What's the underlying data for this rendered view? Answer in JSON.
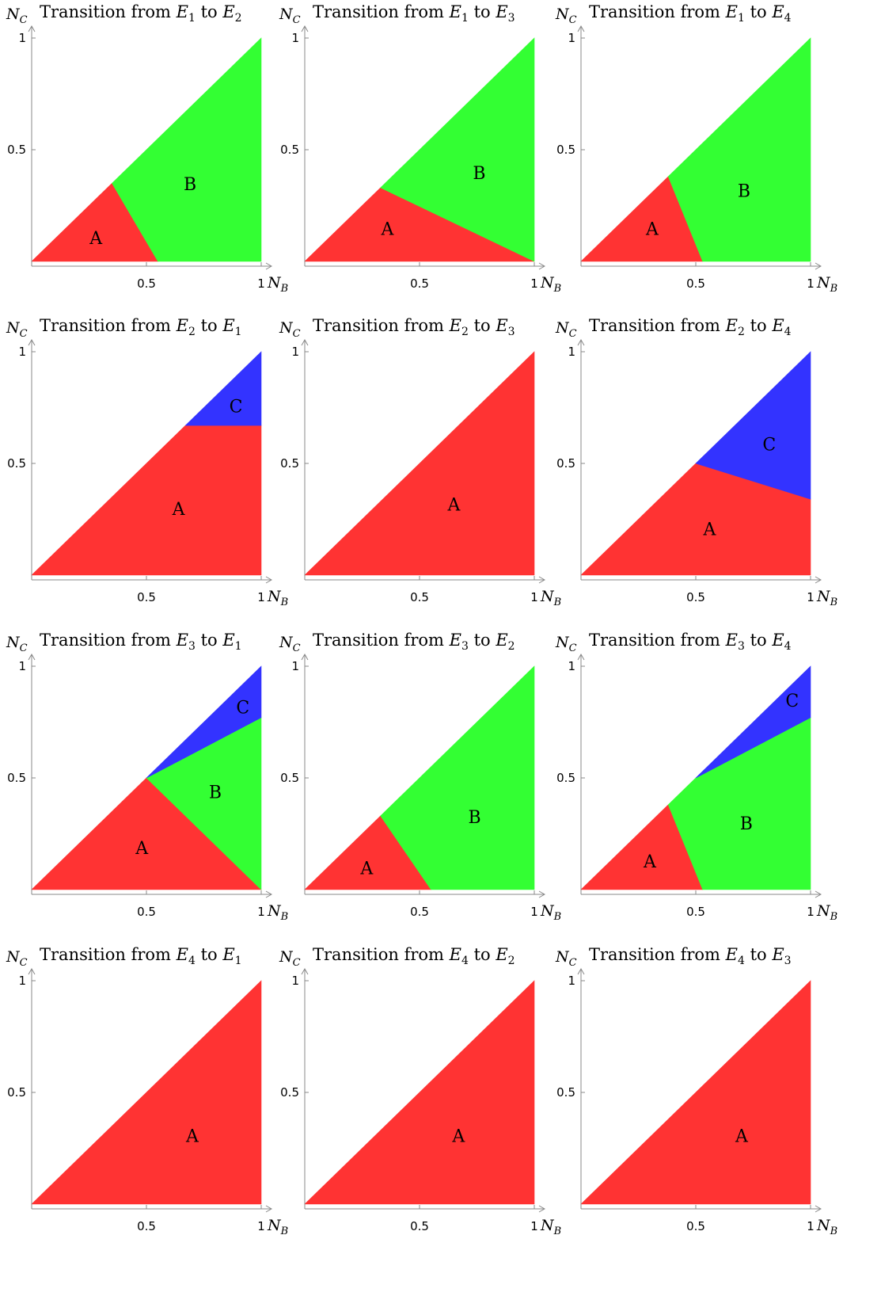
{
  "colors": {
    "A": "#ff3333",
    "B": "#33ff33",
    "C": "#3333ff",
    "axis": "#888888"
  },
  "chart_data": [
    {
      "type": "area",
      "title_prefix": "Transition from ",
      "from": "1",
      "to": "2",
      "xlabel": "N",
      "xlabel_sub": "B",
      "ylabel": "N",
      "ylabel_sub": "C",
      "x_ticks": [
        "0.5",
        "1"
      ],
      "y_ticks": [
        "0.5",
        "1"
      ],
      "xlim": [
        0,
        1
      ],
      "ylim": [
        0,
        1
      ],
      "regions": [
        {
          "label": "A",
          "points": [
            [
              0,
              0
            ],
            [
              0.35,
              0.35
            ],
            [
              0.55,
              0
            ]
          ],
          "label_at": [
            0.28,
            0.1
          ]
        },
        {
          "label": "B",
          "points": [
            [
              0.35,
              0.35
            ],
            [
              1,
              1
            ],
            [
              1,
              0
            ],
            [
              0.55,
              0
            ]
          ],
          "label_at": [
            0.69,
            0.34
          ]
        }
      ]
    },
    {
      "type": "area",
      "title_prefix": "Transition from ",
      "from": "1",
      "to": "3",
      "xlabel": "N",
      "xlabel_sub": "B",
      "ylabel": "N",
      "ylabel_sub": "C",
      "x_ticks": [
        "0.5",
        "1"
      ],
      "y_ticks": [
        "0.5",
        "1"
      ],
      "xlim": [
        0,
        1
      ],
      "ylim": [
        0,
        1
      ],
      "regions": [
        {
          "label": "A",
          "points": [
            [
              0,
              0
            ],
            [
              0.33,
              0.33
            ],
            [
              1,
              0
            ]
          ],
          "label_at": [
            0.36,
            0.14
          ]
        },
        {
          "label": "B",
          "points": [
            [
              0.33,
              0.33
            ],
            [
              1,
              1
            ],
            [
              1,
              0
            ]
          ],
          "label_at": [
            0.76,
            0.39
          ]
        }
      ]
    },
    {
      "type": "area",
      "title_prefix": "Transition from ",
      "from": "1",
      "to": "4",
      "xlabel": "N",
      "xlabel_sub": "B",
      "ylabel": "N",
      "ylabel_sub": "C",
      "x_ticks": [
        "0.5",
        "1"
      ],
      "y_ticks": [
        "0.5",
        "1"
      ],
      "xlim": [
        0,
        1
      ],
      "ylim": [
        0,
        1
      ],
      "regions": [
        {
          "label": "A",
          "points": [
            [
              0,
              0
            ],
            [
              0.38,
              0.38
            ],
            [
              0.53,
              0
            ]
          ],
          "label_at": [
            0.31,
            0.14
          ]
        },
        {
          "label": "B",
          "points": [
            [
              0.38,
              0.38
            ],
            [
              1,
              1
            ],
            [
              1,
              0
            ],
            [
              0.53,
              0
            ]
          ],
          "label_at": [
            0.71,
            0.31
          ]
        }
      ]
    },
    {
      "type": "area",
      "title_prefix": "Transition from ",
      "from": "2",
      "to": "1",
      "xlabel": "N",
      "xlabel_sub": "B",
      "ylabel": "N",
      "ylabel_sub": "C",
      "x_ticks": [
        "0.5",
        "1"
      ],
      "y_ticks": [
        "0.5",
        "1"
      ],
      "xlim": [
        0,
        1
      ],
      "ylim": [
        0,
        1
      ],
      "regions": [
        {
          "label": "A",
          "points": [
            [
              0,
              0
            ],
            [
              0.67,
              0.67
            ],
            [
              1,
              0.67
            ],
            [
              1,
              0
            ]
          ],
          "label_at": [
            0.64,
            0.29
          ]
        },
        {
          "label": "C",
          "points": [
            [
              0.67,
              0.67
            ],
            [
              1,
              1
            ],
            [
              1,
              0.67
            ]
          ],
          "label_at": [
            0.89,
            0.75
          ]
        }
      ]
    },
    {
      "type": "area",
      "title_prefix": "Transition from ",
      "from": "2",
      "to": "3",
      "xlabel": "N",
      "xlabel_sub": "B",
      "ylabel": "N",
      "ylabel_sub": "C",
      "x_ticks": [
        "0.5",
        "1"
      ],
      "y_ticks": [
        "0.5",
        "1"
      ],
      "xlim": [
        0,
        1
      ],
      "ylim": [
        0,
        1
      ],
      "regions": [
        {
          "label": "A",
          "points": [
            [
              0,
              0
            ],
            [
              1,
              1
            ],
            [
              1,
              0
            ]
          ],
          "label_at": [
            0.65,
            0.31
          ]
        }
      ]
    },
    {
      "type": "area",
      "title_prefix": "Transition from ",
      "from": "2",
      "to": "4",
      "xlabel": "N",
      "xlabel_sub": "B",
      "ylabel": "N",
      "ylabel_sub": "C",
      "x_ticks": [
        "0.5",
        "1"
      ],
      "y_ticks": [
        "0.5",
        "1"
      ],
      "xlim": [
        0,
        1
      ],
      "ylim": [
        0,
        1
      ],
      "regions": [
        {
          "label": "A",
          "points": [
            [
              0,
              0
            ],
            [
              0.5,
              0.5
            ],
            [
              1,
              0.34
            ],
            [
              1,
              0
            ]
          ],
          "label_at": [
            0.56,
            0.2
          ]
        },
        {
          "label": "C",
          "points": [
            [
              0.5,
              0.5
            ],
            [
              1,
              1
            ],
            [
              1,
              0.34
            ]
          ],
          "label_at": [
            0.82,
            0.58
          ]
        }
      ]
    },
    {
      "type": "area",
      "title_prefix": "Transition from ",
      "from": "3",
      "to": "1",
      "xlabel": "N",
      "xlabel_sub": "B",
      "ylabel": "N",
      "ylabel_sub": "C",
      "x_ticks": [
        "0.5",
        "1"
      ],
      "y_ticks": [
        "0.5",
        "1"
      ],
      "xlim": [
        0,
        1
      ],
      "ylim": [
        0,
        1
      ],
      "regions": [
        {
          "label": "A",
          "points": [
            [
              0,
              0
            ],
            [
              0.5,
              0.5
            ],
            [
              1,
              0
            ]
          ],
          "label_at": [
            0.48,
            0.18
          ]
        },
        {
          "label": "B",
          "points": [
            [
              0.5,
              0.5
            ],
            [
              1,
              0.77
            ],
            [
              1,
              0
            ]
          ],
          "label_at": [
            0.8,
            0.43
          ]
        },
        {
          "label": "C",
          "points": [
            [
              0.5,
              0.5
            ],
            [
              1,
              1
            ],
            [
              1,
              0.77
            ]
          ],
          "label_at": [
            0.92,
            0.81
          ]
        }
      ]
    },
    {
      "type": "area",
      "title_prefix": "Transition from ",
      "from": "3",
      "to": "2",
      "xlabel": "N",
      "xlabel_sub": "B",
      "ylabel": "N",
      "ylabel_sub": "C",
      "x_ticks": [
        "0.5",
        "1"
      ],
      "y_ticks": [
        "0.5",
        "1"
      ],
      "xlim": [
        0,
        1
      ],
      "ylim": [
        0,
        1
      ],
      "regions": [
        {
          "label": "A",
          "points": [
            [
              0,
              0
            ],
            [
              0.33,
              0.33
            ],
            [
              0.55,
              0
            ]
          ],
          "label_at": [
            0.27,
            0.09
          ]
        },
        {
          "label": "B",
          "points": [
            [
              0.33,
              0.33
            ],
            [
              1,
              1
            ],
            [
              1,
              0
            ],
            [
              0.55,
              0
            ]
          ],
          "label_at": [
            0.74,
            0.32
          ]
        }
      ]
    },
    {
      "type": "area",
      "title_prefix": "Transition from ",
      "from": "3",
      "to": "4",
      "xlabel": "N",
      "xlabel_sub": "B",
      "ylabel": "N",
      "ylabel_sub": "C",
      "x_ticks": [
        "0.5",
        "1"
      ],
      "y_ticks": [
        "0.5",
        "1"
      ],
      "xlim": [
        0,
        1
      ],
      "ylim": [
        0,
        1
      ],
      "regions": [
        {
          "label": "A",
          "points": [
            [
              0,
              0
            ],
            [
              0.38,
              0.38
            ],
            [
              0.53,
              0
            ]
          ],
          "label_at": [
            0.3,
            0.12
          ]
        },
        {
          "label": "B",
          "points": [
            [
              0.38,
              0.38
            ],
            [
              0.5,
              0.5
            ],
            [
              1,
              0.77
            ],
            [
              1,
              0
            ],
            [
              0.53,
              0
            ]
          ],
          "label_at": [
            0.72,
            0.29
          ]
        },
        {
          "label": "C",
          "points": [
            [
              0.5,
              0.5
            ],
            [
              1,
              1
            ],
            [
              1,
              0.77
            ]
          ],
          "label_at": [
            0.92,
            0.84
          ]
        }
      ]
    },
    {
      "type": "area",
      "title_prefix": "Transition from ",
      "from": "4",
      "to": "1",
      "xlabel": "N",
      "xlabel_sub": "B",
      "ylabel": "N",
      "ylabel_sub": "C",
      "x_ticks": [
        "0.5",
        "1"
      ],
      "y_ticks": [
        "0.5",
        "1"
      ],
      "xlim": [
        0,
        1
      ],
      "ylim": [
        0,
        1
      ],
      "regions": [
        {
          "label": "A",
          "points": [
            [
              0,
              0
            ],
            [
              1,
              1
            ],
            [
              1,
              0
            ]
          ],
          "label_at": [
            0.7,
            0.3
          ]
        }
      ]
    },
    {
      "type": "area",
      "title_prefix": "Transition from ",
      "from": "4",
      "to": "2",
      "xlabel": "N",
      "xlabel_sub": "B",
      "ylabel": "N",
      "ylabel_sub": "C",
      "x_ticks": [
        "0.5",
        "1"
      ],
      "y_ticks": [
        "0.5",
        "1"
      ],
      "xlim": [
        0,
        1
      ],
      "ylim": [
        0,
        1
      ],
      "regions": [
        {
          "label": "A",
          "points": [
            [
              0,
              0
            ],
            [
              1,
              1
            ],
            [
              1,
              0
            ]
          ],
          "label_at": [
            0.67,
            0.3
          ]
        }
      ]
    },
    {
      "type": "area",
      "title_prefix": "Transition from ",
      "from": "4",
      "to": "3",
      "xlabel": "N",
      "xlabel_sub": "B",
      "ylabel": "N",
      "ylabel_sub": "C",
      "x_ticks": [
        "0.5",
        "1"
      ],
      "y_ticks": [
        "0.5",
        "1"
      ],
      "xlim": [
        0,
        1
      ],
      "ylim": [
        0,
        1
      ],
      "regions": [
        {
          "label": "A",
          "points": [
            [
              0,
              0
            ],
            [
              1,
              1
            ],
            [
              1,
              0
            ]
          ],
          "label_at": [
            0.7,
            0.3
          ]
        }
      ]
    }
  ]
}
